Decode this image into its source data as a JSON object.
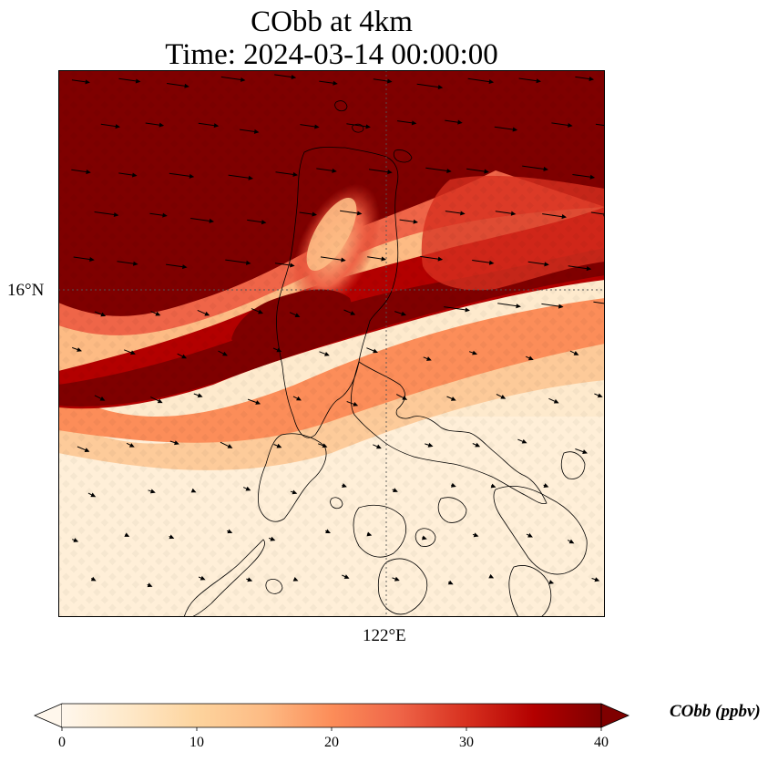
{
  "title": {
    "line1": "CObb at 4km",
    "line2": "Time: 2024-03-14 00:00:00"
  },
  "map": {
    "lat_tick_label": "16°N",
    "lon_tick_label": "122°E",
    "gridlines": "dotted",
    "wind_vectors": "shown",
    "coastlines": "shown"
  },
  "colorbar": {
    "label": "CObb (ppbv)",
    "ticks": [
      "0",
      "10",
      "20",
      "30",
      "40"
    ],
    "range": [
      0,
      40
    ],
    "extend": "both",
    "colormap": "OrRd",
    "colors": [
      "#fff7ec",
      "#fee8c8",
      "#fdd49e",
      "#fdbb84",
      "#fc8d59",
      "#ef6548",
      "#d7301f",
      "#b30000",
      "#7f0000"
    ]
  }
}
